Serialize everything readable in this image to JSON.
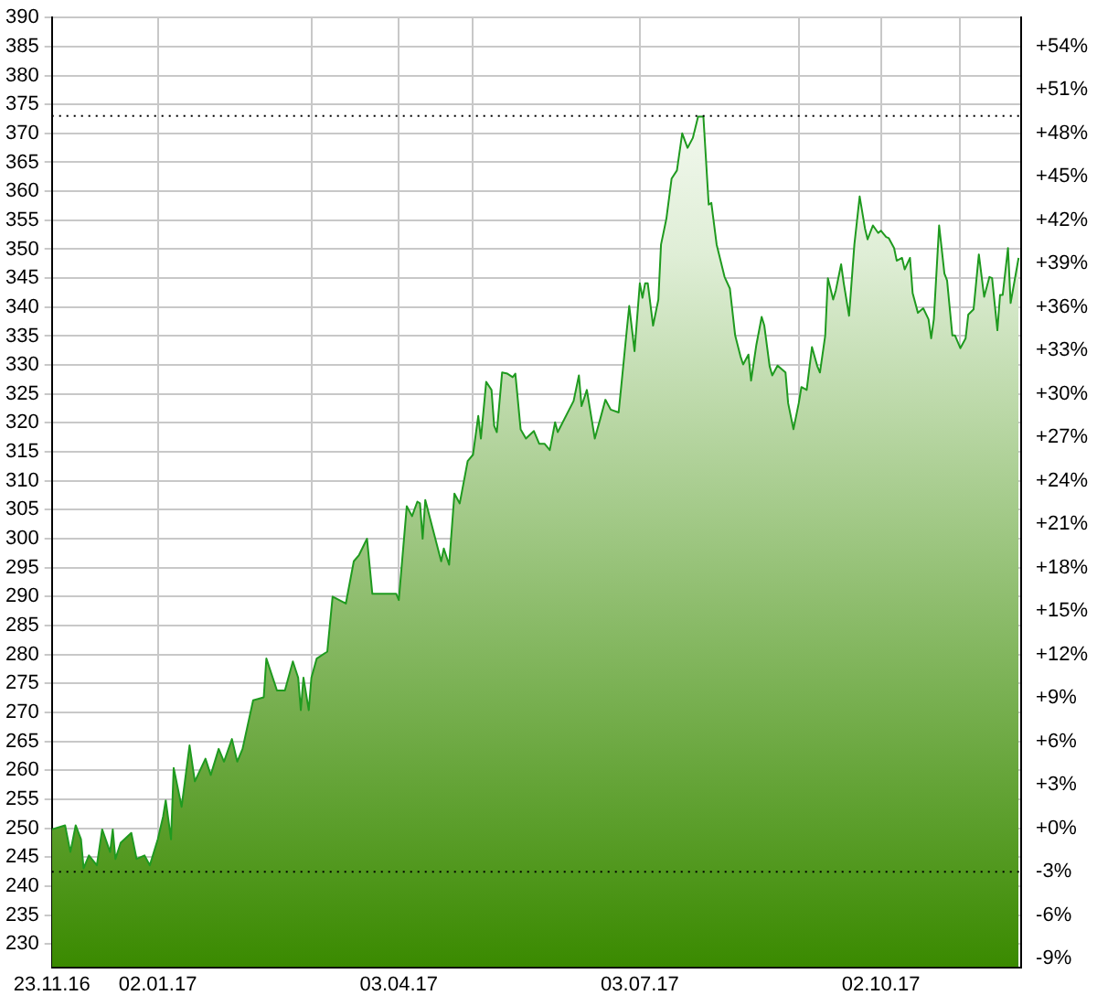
{
  "chart_data": {
    "type": "area",
    "x": [
      "2016-11-23",
      "2016-11-28",
      "2016-11-30",
      "2016-12-02",
      "2016-12-04",
      "2016-12-05",
      "2016-12-07",
      "2016-12-10",
      "2016-12-12",
      "2016-12-15",
      "2016-12-16",
      "2016-12-17",
      "2016-12-19",
      "2016-12-23",
      "2016-12-25",
      "2016-12-28",
      "2016-12-30",
      "2017-01-02",
      "2017-01-04",
      "2017-01-05",
      "2017-01-07",
      "2017-01-08",
      "2017-01-11",
      "2017-01-14",
      "2017-01-16",
      "2017-01-20",
      "2017-01-22",
      "2017-01-25",
      "2017-01-27",
      "2017-01-30",
      "2017-02-01",
      "2017-02-03",
      "2017-02-07",
      "2017-02-11",
      "2017-02-12",
      "2017-02-16",
      "2017-02-19",
      "2017-02-22",
      "2017-02-24",
      "2017-02-25",
      "2017-02-26",
      "2017-02-28",
      "2017-03-01",
      "2017-03-03",
      "2017-03-07",
      "2017-03-09",
      "2017-03-14",
      "2017-03-17",
      "2017-03-19",
      "2017-03-22",
      "2017-03-24",
      "2017-04-02",
      "2017-04-03",
      "2017-04-06",
      "2017-04-08",
      "2017-04-10",
      "2017-04-11",
      "2017-04-12",
      "2017-04-13",
      "2017-04-19",
      "2017-04-20",
      "2017-04-22",
      "2017-04-24",
      "2017-04-26",
      "2017-04-29",
      "2017-05-01",
      "2017-05-03",
      "2017-05-04",
      "2017-05-06",
      "2017-05-08",
      "2017-05-09",
      "2017-05-10",
      "2017-05-12",
      "2017-05-14",
      "2017-05-16",
      "2017-05-17",
      "2017-05-19",
      "2017-05-21",
      "2017-05-24",
      "2017-05-26",
      "2017-05-28",
      "2017-05-30",
      "2017-06-01",
      "2017-06-02",
      "2017-06-08",
      "2017-06-10",
      "2017-06-11",
      "2017-06-13",
      "2017-06-16",
      "2017-06-18",
      "2017-06-20",
      "2017-06-22",
      "2017-06-25",
      "2017-06-26",
      "2017-06-28",
      "2017-06-29",
      "2017-07-01",
      "2017-07-03",
      "2017-07-04",
      "2017-07-05",
      "2017-07-06",
      "2017-07-08",
      "2017-07-10",
      "2017-07-11",
      "2017-07-13",
      "2017-07-15",
      "2017-07-17",
      "2017-07-19",
      "2017-07-21",
      "2017-07-23",
      "2017-07-25",
      "2017-07-27",
      "2017-07-29",
      "2017-07-30",
      "2017-08-01",
      "2017-08-04",
      "2017-08-06",
      "2017-08-08",
      "2017-08-10",
      "2017-08-11",
      "2017-08-13",
      "2017-08-14",
      "2017-08-16",
      "2017-08-18",
      "2017-08-19",
      "2017-08-21",
      "2017-08-22",
      "2017-08-24",
      "2017-08-27",
      "2017-08-28",
      "2017-08-30",
      "2017-09-01",
      "2017-09-02",
      "2017-09-04",
      "2017-09-06",
      "2017-09-08",
      "2017-09-09",
      "2017-09-11",
      "2017-09-12",
      "2017-09-14",
      "2017-09-15",
      "2017-09-17",
      "2017-09-18",
      "2017-09-20",
      "2017-09-22",
      "2017-09-24",
      "2017-09-26",
      "2017-09-27",
      "2017-09-29",
      "2017-10-01",
      "2017-10-02",
      "2017-10-04",
      "2017-10-05",
      "2017-10-07",
      "2017-10-08",
      "2017-10-10",
      "2017-10-11",
      "2017-10-13",
      "2017-10-14",
      "2017-10-16",
      "2017-10-18",
      "2017-10-20",
      "2017-10-21",
      "2017-10-22",
      "2017-10-24",
      "2017-10-26",
      "2017-10-27",
      "2017-10-29",
      "2017-10-30",
      "2017-11-01",
      "2017-11-03",
      "2017-11-04",
      "2017-11-06",
      "2017-11-08",
      "2017-11-10",
      "2017-11-12",
      "2017-11-13",
      "2017-11-15",
      "2017-11-16",
      "2017-11-17",
      "2017-11-19",
      "2017-11-20",
      "2017-11-23"
    ],
    "series": [
      {
        "color": "#1f9a1f",
        "values": [
          249.8,
          250.5,
          245.9,
          250.5,
          248.1,
          243.1,
          245.3,
          243.6,
          249.8,
          245.9,
          249.8,
          244.7,
          247.5,
          249.2,
          244.7,
          245.3,
          243.6,
          248.1,
          252,
          254.8,
          248.1,
          260.4,
          253.7,
          264.3,
          258.1,
          262,
          259.2,
          263.7,
          261.5,
          265.4,
          261.5,
          263.7,
          272.1,
          272.6,
          279.3,
          273.8,
          273.8,
          278.8,
          276,
          270.4,
          276,
          270.4,
          276,
          279.3,
          280.5,
          290,
          288.8,
          296.1,
          297.2,
          300,
          290.5,
          290.5,
          289.4,
          305.6,
          303.9,
          306.4,
          306.1,
          300,
          306.7,
          296.1,
          298.3,
          295.5,
          307.8,
          306.1,
          313.4,
          314.5,
          321.2,
          317.3,
          327.1,
          325.7,
          319.5,
          318.4,
          328.7,
          328.5,
          327.9,
          328.5,
          318.9,
          317.3,
          318.6,
          316.4,
          316.4,
          315.3,
          320.1,
          318.4,
          323.8,
          328.2,
          322.9,
          325.7,
          317.3,
          320.6,
          324,
          322.3,
          321.8,
          326.4,
          335.7,
          340.2,
          332.4,
          344.1,
          341.6,
          344.1,
          344.1,
          336.8,
          341.3,
          350.8,
          355.2,
          362.2,
          363.6,
          370,
          367.5,
          369.2,
          372.9,
          372.9,
          357.7,
          358,
          350.8,
          345.2,
          343.2,
          335.1,
          331.5,
          330.1,
          331.8,
          327.3,
          333.5,
          338.3,
          336.8,
          329.8,
          328.2,
          329.9,
          328.7,
          323.4,
          318.9,
          323.4,
          326.2,
          325.7,
          333.1,
          329.8,
          328.7,
          335.1,
          345,
          341.3,
          342.9,
          347.4,
          344.1,
          338.5,
          350.8,
          359.1,
          353.6,
          351.7,
          354.1,
          352.8,
          353.2,
          352.1,
          351.9,
          350.2,
          348,
          348.5,
          346.5,
          348.5,
          342.4,
          339,
          339.8,
          337.9,
          334.6,
          337.9,
          354.1,
          345.8,
          344.6,
          335.1,
          335.1,
          332.9,
          334.6,
          338.7,
          339.6,
          349.1,
          341.8,
          345.2,
          345,
          336,
          342.1,
          342.1,
          350.2,
          340.7,
          348.5
        ]
      }
    ],
    "xlim": [
      "2016-11-23",
      "2017-11-24"
    ],
    "xticks": [
      {
        "value": "2016-11-23",
        "label": "23.11.16"
      },
      {
        "value": "2017-01-02",
        "label": "02.01.17"
      },
      {
        "value": "2017-03-01",
        "label": null
      },
      {
        "value": "2017-04-03",
        "label": "03.04.17"
      },
      {
        "value": "2017-05-01",
        "label": null
      },
      {
        "value": "2017-07-03",
        "label": "03.07.17"
      },
      {
        "value": "2017-09-01",
        "label": null
      },
      {
        "value": "2017-10-02",
        "label": "02.10.17"
      },
      {
        "value": "2017-11-01",
        "label": null
      }
    ],
    "ylim": [
      226,
      390
    ],
    "yticks": [
      230,
      235,
      240,
      245,
      250,
      255,
      260,
      265,
      270,
      275,
      280,
      285,
      290,
      295,
      300,
      305,
      310,
      315,
      320,
      325,
      330,
      335,
      340,
      345,
      350,
      355,
      360,
      365,
      370,
      375,
      380,
      385,
      390
    ],
    "y2lim": [
      -9.6,
      56
    ],
    "y2ticks": [
      {
        "value": -9,
        "label": "-9%"
      },
      {
        "value": -6,
        "label": "-6%"
      },
      {
        "value": -3,
        "label": "-3%"
      },
      {
        "value": 0,
        "label": "+0%"
      },
      {
        "value": 3,
        "label": "+3%"
      },
      {
        "value": 6,
        "label": "+6%"
      },
      {
        "value": 9,
        "label": "+9%"
      },
      {
        "value": 12,
        "label": "+12%"
      },
      {
        "value": 15,
        "label": "+15%"
      },
      {
        "value": 18,
        "label": "+18%"
      },
      {
        "value": 21,
        "label": "+21%"
      },
      {
        "value": 24,
        "label": "+24%"
      },
      {
        "value": 27,
        "label": "+27%"
      },
      {
        "value": 30,
        "label": "+30%"
      },
      {
        "value": 33,
        "label": "+33%"
      },
      {
        "value": 36,
        "label": "+36%"
      },
      {
        "value": 39,
        "label": "+39%"
      },
      {
        "value": 42,
        "label": "+42%"
      },
      {
        "value": 45,
        "label": "+45%"
      },
      {
        "value": 48,
        "label": "+48%"
      },
      {
        "value": 51,
        "label": "+51%"
      },
      {
        "value": 54,
        "label": "+54%"
      }
    ],
    "ref_lines": [
      {
        "axis": "y",
        "value": 373,
        "color": "#000000",
        "line_style": "dotted"
      },
      {
        "axis": "y",
        "value": 242.5,
        "color": "#000000",
        "line_style": "dotted"
      }
    ],
    "grid": true,
    "legend": false,
    "marker": "none",
    "line_style": "solid"
  }
}
